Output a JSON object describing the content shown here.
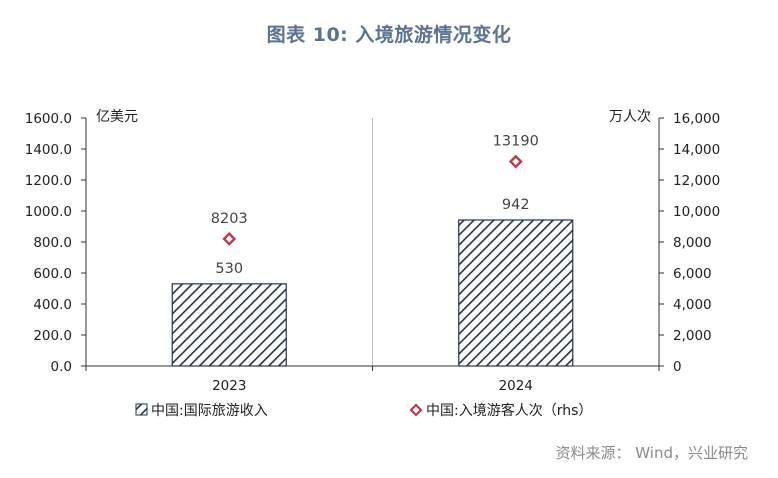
{
  "title": "图表 10: 入境旅游情况变化",
  "source": "资料来源： Wind，兴业研究",
  "chart_data": {
    "type": "bar",
    "categories": [
      "2023",
      "2024"
    ],
    "series": [
      {
        "name": "中国:国际旅游收入",
        "type": "bar",
        "axis": "left",
        "values": [
          530,
          942
        ],
        "labels": [
          "530",
          "942"
        ]
      },
      {
        "name": "中国:入境游客人次（rhs）",
        "type": "scatter",
        "axis": "right",
        "values": [
          8203,
          13190
        ],
        "labels": [
          "8203",
          "13190"
        ]
      }
    ],
    "ylabel": "亿美元",
    "y2label": "万人次",
    "ylim": [
      0,
      1600
    ],
    "y2lim": [
      0,
      16000
    ],
    "yticks": [
      "0.0",
      "200.0",
      "400.0",
      "600.0",
      "800.0",
      "1000.0",
      "1200.0",
      "1400.0",
      "1600.0"
    ],
    "y2ticks": [
      "0",
      "2,000",
      "4,000",
      "6,000",
      "8,000",
      "10,000",
      "12,000",
      "14,000",
      "16,000"
    ],
    "grid": "vertical-separators",
    "legend": "bottom",
    "colors": {
      "bar_stroke": "#26324f",
      "bar_hatch": "#26324f",
      "marker": "#c0394b",
      "axis": "#333333",
      "grid": "#bfbfbf"
    }
  }
}
